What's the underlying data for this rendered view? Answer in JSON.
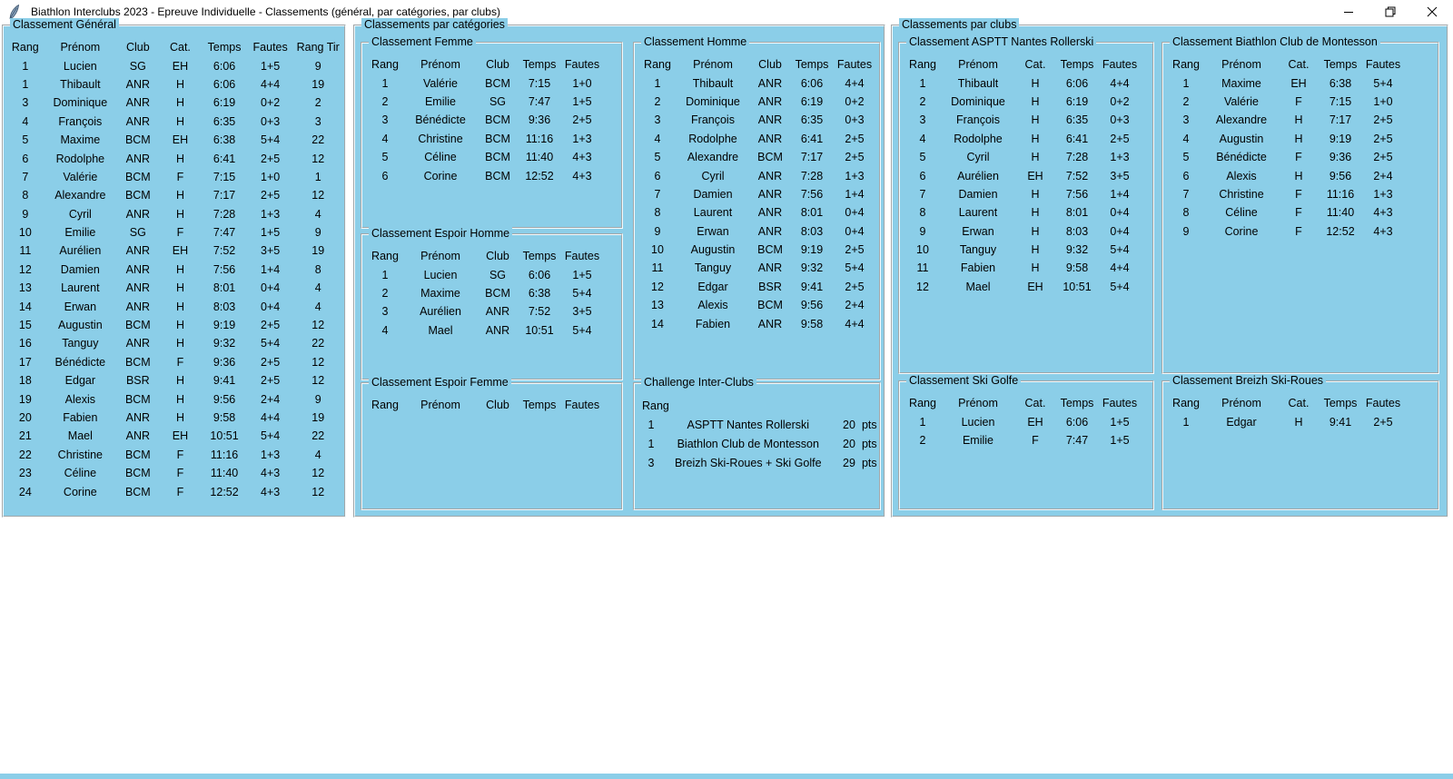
{
  "window": {
    "title": "Biathlon Interclubs 2023 - Epreuve Individuelle - Classements (général, par catégories, par clubs)"
  },
  "colors": {
    "panel_blue": "#8BCEE8",
    "titlebar_bg": "#FFFFFF",
    "text": "#000000"
  },
  "panels": {
    "general": {
      "title": "Classement Général",
      "headers": [
        "Rang",
        "Prénom",
        "Club",
        "Cat.",
        "Temps",
        "Fautes",
        "Rang Tir"
      ],
      "rows": [
        [
          "1",
          "Lucien",
          "SG",
          "EH",
          "6:06",
          "1+5",
          "9"
        ],
        [
          "1",
          "Thibault",
          "ANR",
          "H",
          "6:06",
          "4+4",
          "19"
        ],
        [
          "3",
          "Dominique",
          "ANR",
          "H",
          "6:19",
          "0+2",
          "2"
        ],
        [
          "4",
          "François",
          "ANR",
          "H",
          "6:35",
          "0+3",
          "3"
        ],
        [
          "5",
          "Maxime",
          "BCM",
          "EH",
          "6:38",
          "5+4",
          "22"
        ],
        [
          "6",
          "Rodolphe",
          "ANR",
          "H",
          "6:41",
          "2+5",
          "12"
        ],
        [
          "7",
          "Valérie",
          "BCM",
          "F",
          "7:15",
          "1+0",
          "1"
        ],
        [
          "8",
          "Alexandre",
          "BCM",
          "H",
          "7:17",
          "2+5",
          "12"
        ],
        [
          "9",
          "Cyril",
          "ANR",
          "H",
          "7:28",
          "1+3",
          "4"
        ],
        [
          "10",
          "Emilie",
          "SG",
          "F",
          "7:47",
          "1+5",
          "9"
        ],
        [
          "11",
          "Aurélien",
          "ANR",
          "EH",
          "7:52",
          "3+5",
          "19"
        ],
        [
          "12",
          "Damien",
          "ANR",
          "H",
          "7:56",
          "1+4",
          "8"
        ],
        [
          "13",
          "Laurent",
          "ANR",
          "H",
          "8:01",
          "0+4",
          "4"
        ],
        [
          "14",
          "Erwan",
          "ANR",
          "H",
          "8:03",
          "0+4",
          "4"
        ],
        [
          "15",
          "Augustin",
          "BCM",
          "H",
          "9:19",
          "2+5",
          "12"
        ],
        [
          "16",
          "Tanguy",
          "ANR",
          "H",
          "9:32",
          "5+4",
          "22"
        ],
        [
          "17",
          "Bénédicte",
          "BCM",
          "F",
          "9:36",
          "2+5",
          "12"
        ],
        [
          "18",
          "Edgar",
          "BSR",
          "H",
          "9:41",
          "2+5",
          "12"
        ],
        [
          "19",
          "Alexis",
          "BCM",
          "H",
          "9:56",
          "2+4",
          "9"
        ],
        [
          "20",
          "Fabien",
          "ANR",
          "H",
          "9:58",
          "4+4",
          "19"
        ],
        [
          "21",
          "Mael",
          "ANR",
          "EH",
          "10:51",
          "5+4",
          "22"
        ],
        [
          "22",
          "Christine",
          "BCM",
          "F",
          "11:16",
          "1+3",
          "4"
        ],
        [
          "23",
          "Céline",
          "BCM",
          "F",
          "11:40",
          "4+3",
          "12"
        ],
        [
          "24",
          "Corine",
          "BCM",
          "F",
          "12:52",
          "4+3",
          "12"
        ]
      ]
    },
    "categories": {
      "title": "Classements par catégories",
      "femme": {
        "title": "Classement Femme",
        "headers": [
          "Rang",
          "Prénom",
          "Club",
          "Temps",
          "Fautes"
        ],
        "rows": [
          [
            "1",
            "Valérie",
            "BCM",
            "7:15",
            "1+0"
          ],
          [
            "2",
            "Emilie",
            "SG",
            "7:47",
            "1+5"
          ],
          [
            "3",
            "Bénédicte",
            "BCM",
            "9:36",
            "2+5"
          ],
          [
            "4",
            "Christine",
            "BCM",
            "11:16",
            "1+3"
          ],
          [
            "5",
            "Céline",
            "BCM",
            "11:40",
            "4+3"
          ],
          [
            "6",
            "Corine",
            "BCM",
            "12:52",
            "4+3"
          ]
        ]
      },
      "espoir_homme": {
        "title": "Classement Espoir Homme",
        "headers": [
          "Rang",
          "Prénom",
          "Club",
          "Temps",
          "Fautes"
        ],
        "rows": [
          [
            "1",
            "Lucien",
            "SG",
            "6:06",
            "1+5"
          ],
          [
            "2",
            "Maxime",
            "BCM",
            "6:38",
            "5+4"
          ],
          [
            "3",
            "Aurélien",
            "ANR",
            "7:52",
            "3+5"
          ],
          [
            "4",
            "Mael",
            "ANR",
            "10:51",
            "5+4"
          ]
        ]
      },
      "espoir_femme": {
        "title": "Classement Espoir Femme",
        "headers": [
          "Rang",
          "Prénom",
          "Club",
          "Temps",
          "Fautes"
        ],
        "rows": []
      },
      "homme": {
        "title": "Classement Homme",
        "headers": [
          "Rang",
          "Prénom",
          "Club",
          "Temps",
          "Fautes"
        ],
        "rows": [
          [
            "1",
            "Thibault",
            "ANR",
            "6:06",
            "4+4"
          ],
          [
            "2",
            "Dominique",
            "ANR",
            "6:19",
            "0+2"
          ],
          [
            "3",
            "François",
            "ANR",
            "6:35",
            "0+3"
          ],
          [
            "4",
            "Rodolphe",
            "ANR",
            "6:41",
            "2+5"
          ],
          [
            "5",
            "Alexandre",
            "BCM",
            "7:17",
            "2+5"
          ],
          [
            "6",
            "Cyril",
            "ANR",
            "7:28",
            "1+3"
          ],
          [
            "7",
            "Damien",
            "ANR",
            "7:56",
            "1+4"
          ],
          [
            "8",
            "Laurent",
            "ANR",
            "8:01",
            "0+4"
          ],
          [
            "9",
            "Erwan",
            "ANR",
            "8:03",
            "0+4"
          ],
          [
            "10",
            "Augustin",
            "BCM",
            "9:19",
            "2+5"
          ],
          [
            "11",
            "Tanguy",
            "ANR",
            "9:32",
            "5+4"
          ],
          [
            "12",
            "Edgar",
            "BSR",
            "9:41",
            "2+5"
          ],
          [
            "13",
            "Alexis",
            "BCM",
            "9:56",
            "2+4"
          ],
          [
            "14",
            "Fabien",
            "ANR",
            "9:58",
            "4+4"
          ]
        ]
      },
      "challenge": {
        "title": "Challenge Inter-Clubs",
        "headers": [
          "Rang"
        ],
        "rows": [
          [
            "1",
            "ASPTT Nantes Rollerski",
            "20",
            "pts"
          ],
          [
            "1",
            "Biathlon Club de Montesson",
            "20",
            "pts"
          ],
          [
            "3",
            "Breizh Ski-Roues + Ski Golfe",
            "29",
            "pts"
          ]
        ]
      }
    },
    "clubs": {
      "title": "Classements par clubs",
      "asptt": {
        "title": "Classement ASPTT Nantes Rollerski",
        "headers": [
          "Rang",
          "Prénom",
          "Cat.",
          "Temps",
          "Fautes"
        ],
        "rows": [
          [
            "1",
            "Thibault",
            "H",
            "6:06",
            "4+4"
          ],
          [
            "2",
            "Dominique",
            "H",
            "6:19",
            "0+2"
          ],
          [
            "3",
            "François",
            "H",
            "6:35",
            "0+3"
          ],
          [
            "4",
            "Rodolphe",
            "H",
            "6:41",
            "2+5"
          ],
          [
            "5",
            "Cyril",
            "H",
            "7:28",
            "1+3"
          ],
          [
            "6",
            "Aurélien",
            "EH",
            "7:52",
            "3+5"
          ],
          [
            "7",
            "Damien",
            "H",
            "7:56",
            "1+4"
          ],
          [
            "8",
            "Laurent",
            "H",
            "8:01",
            "0+4"
          ],
          [
            "9",
            "Erwan",
            "H",
            "8:03",
            "0+4"
          ],
          [
            "10",
            "Tanguy",
            "H",
            "9:32",
            "5+4"
          ],
          [
            "11",
            "Fabien",
            "H",
            "9:58",
            "4+4"
          ],
          [
            "12",
            "Mael",
            "EH",
            "10:51",
            "5+4"
          ]
        ]
      },
      "montesson": {
        "title": "Classement Biathlon Club de Montesson",
        "headers": [
          "Rang",
          "Prénom",
          "Cat.",
          "Temps",
          "Fautes"
        ],
        "rows": [
          [
            "1",
            "Maxime",
            "EH",
            "6:38",
            "5+4"
          ],
          [
            "2",
            "Valérie",
            "F",
            "7:15",
            "1+0"
          ],
          [
            "3",
            "Alexandre",
            "H",
            "7:17",
            "2+5"
          ],
          [
            "4",
            "Augustin",
            "H",
            "9:19",
            "2+5"
          ],
          [
            "5",
            "Bénédicte",
            "F",
            "9:36",
            "2+5"
          ],
          [
            "6",
            "Alexis",
            "H",
            "9:56",
            "2+4"
          ],
          [
            "7",
            "Christine",
            "F",
            "11:16",
            "1+3"
          ],
          [
            "8",
            "Céline",
            "F",
            "11:40",
            "4+3"
          ],
          [
            "9",
            "Corine",
            "F",
            "12:52",
            "4+3"
          ]
        ]
      },
      "ski_golfe": {
        "title": "Classement Ski Golfe",
        "headers": [
          "Rang",
          "Prénom",
          "Cat.",
          "Temps",
          "Fautes"
        ],
        "rows": [
          [
            "1",
            "Lucien",
            "EH",
            "6:06",
            "1+5"
          ],
          [
            "2",
            "Emilie",
            "F",
            "7:47",
            "1+5"
          ]
        ]
      },
      "breizh": {
        "title": "Classement Breizh Ski-Roues",
        "headers": [
          "Rang",
          "Prénom",
          "Cat.",
          "Temps",
          "Fautes"
        ],
        "rows": [
          [
            "1",
            "Edgar",
            "H",
            "9:41",
            "2+5"
          ]
        ]
      }
    }
  }
}
